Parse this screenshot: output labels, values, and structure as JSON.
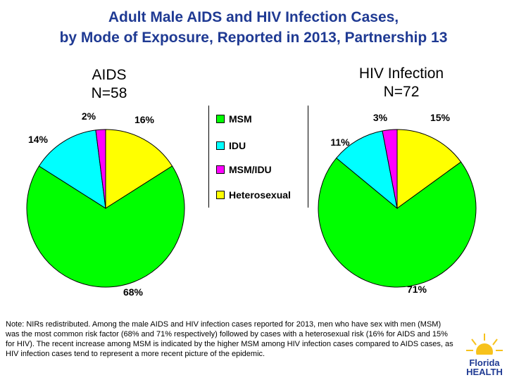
{
  "title": {
    "line1": "Adult Male AIDS and HIV Infection Cases,",
    "line2": "by Mode of Exposure, Reported in 2013, Partnership 13"
  },
  "aids": {
    "heading1": "AIDS",
    "heading2": "N=58"
  },
  "hiv": {
    "heading1": "HIV Infection",
    "heading2": "N=72"
  },
  "legend": [
    {
      "label": "MSM",
      "color": "#00ff00"
    },
    {
      "label": "IDU",
      "color": "#00ffff"
    },
    {
      "label": "MSM/IDU",
      "color": "#ff00ff"
    },
    {
      "label": "Heterosexual",
      "color": "#ffff00"
    }
  ],
  "note": "Note:  NIRs redistributed.  Among the male AIDS and HIV infection cases reported for 2013, men who have sex with men (MSM) was the most common risk factor (68% and 71% respectively) followed by cases with a heterosexual risk (16% for AIDS and 15% for HIV).  The recent increase among MSM is indicated by the higher  MSM among HIV infection cases compared to AIDS cases, as HIV infection cases tend to represent a more recent picture of the epidemic.",
  "logo": {
    "line1": "Florida",
    "line2": "HEALTH"
  },
  "chart_data": [
    {
      "type": "pie",
      "title": "AIDS N=58",
      "categories": [
        "MSM",
        "IDU",
        "MSM/IDU",
        "Heterosexual"
      ],
      "values": [
        68,
        14,
        2,
        16
      ],
      "labels": [
        "68%",
        "14%",
        "2%",
        "16%"
      ]
    },
    {
      "type": "pie",
      "title": "HIV Infection N=72",
      "categories": [
        "MSM",
        "IDU",
        "MSM/IDU",
        "Heterosexual"
      ],
      "values": [
        71,
        11,
        3,
        15
      ],
      "labels": [
        "71%",
        "11%",
        "3%",
        "15%"
      ]
    }
  ]
}
